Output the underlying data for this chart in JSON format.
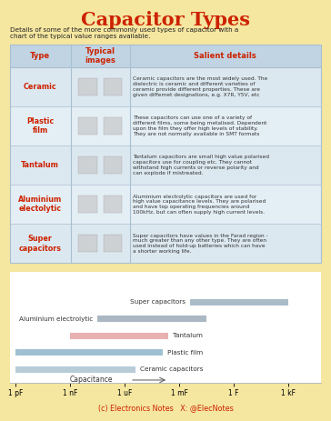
{
  "title": "Capacitor Types",
  "subtitle": "Details of some of the more commonly used types of capacitor with a\nchart of the typical value ranges available.",
  "bg_color": "#f5e6a0",
  "table_bg": "#dce8f0",
  "table_header_bg": "#c0d4e4",
  "table_row_alt": "#e4eef5",
  "table_border": "#a8c0d0",
  "title_color": "#cc2200",
  "header_color": "#cc2200",
  "type_color": "#cc2200",
  "subtitle_color": "#222222",
  "body_color": "#333333",
  "chart_bg": "#ffffff",
  "chart_border": "#bbbbbb",
  "footer_color": "#cc2200",
  "footer_text": "(c) Electronics Notes   X: @ElecNotes",
  "table_headers": [
    "Type",
    "Typical\nimages",
    "Salient details"
  ],
  "capacitor_types": [
    {
      "name": "Ceramic",
      "description": "Ceramic capacitors are the most widely used. The\ndielectric is ceramic and different varieties of\nceramic provide different properties. These are\ngiven differnet designations, e.g. X7R, Y5V, etc"
    },
    {
      "name": "Plastic\nfilm",
      "description": "These capacitors can use one of a variety of\ndifferent films, some being metalised. Dependent\nupon the film they offer high levels of stability.\nThey are not normally available in SMT formats"
    },
    {
      "name": "Tantalum",
      "description": "Tantalum capacitors are small high value polarised\ncapacitors use for coupling etc. They cannot\nwithstand high currents or reverse polarity and\ncan explode if mistreated."
    },
    {
      "name": "Aluminium\nelectolytic",
      "description": "Aluminium electrolytic capacitors are used for\nhigh value capacitance levels. They are polarised\nand have top operating frequencies around\n100kHz, but can often supply high current levels."
    },
    {
      "name": "Super\ncapacitors",
      "description": "Super capacitors have values in the Farad region -\nmuch greater than any other type. They are often\nused instead of hold-up batteries which can have\na shorter working life."
    }
  ],
  "chart": {
    "x_labels": [
      "1 pF",
      "1 nF",
      "1 uF",
      "1 mF",
      "1 F",
      "1 kF"
    ],
    "x_positions": [
      0,
      1,
      2,
      3,
      4,
      5
    ],
    "xlabel": "Capacitance",
    "bars": [
      {
        "label": "Ceramic capacitors",
        "color": "#b8ccd8",
        "xstart": 0,
        "xend": 2.2,
        "label_side": "right",
        "y": 0
      },
      {
        "label": "Plastic film",
        "color": "#9fc0d0",
        "xstart": 0,
        "xend": 2.7,
        "label_side": "right",
        "y": 1
      },
      {
        "label": "Tantalum",
        "color": "#e8b0b0",
        "xstart": 1.0,
        "xend": 2.8,
        "label_side": "right",
        "y": 2
      },
      {
        "label": "Aluminium electrolytic",
        "color": "#aab8c4",
        "xstart": 1.5,
        "xend": 3.5,
        "label_side": "left",
        "y": 3
      },
      {
        "label": "Super capacitors",
        "color": "#aabcc8",
        "xstart": 3.2,
        "xend": 5.0,
        "label_side": "left",
        "y": 4
      }
    ]
  }
}
